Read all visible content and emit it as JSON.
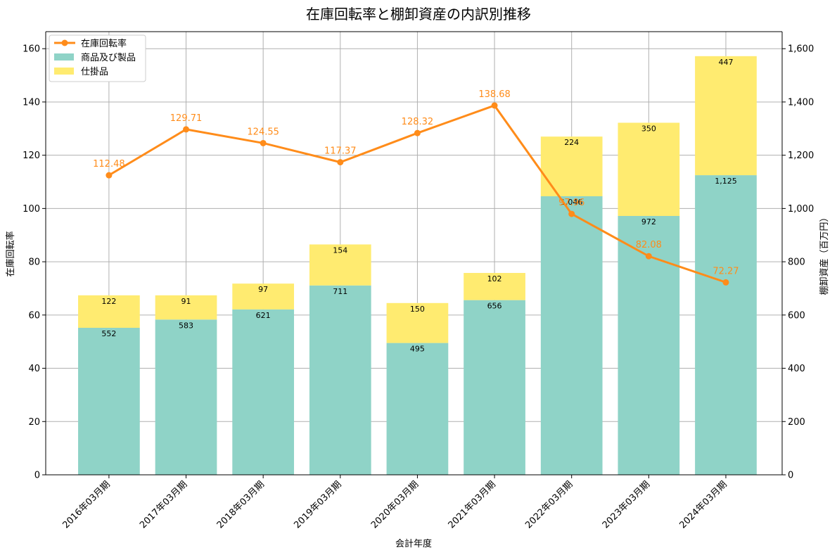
{
  "chart_data": {
    "type": "bar",
    "title": "在庫回転率と棚卸資産の内訳別推移",
    "xlabel": "会計年度",
    "ylabel_left": "在庫回転率",
    "ylabel_right": "棚卸資産（百万円）",
    "categories": [
      "2016年03月期",
      "2017年03月期",
      "2018年03月期",
      "2019年03月期",
      "2020年03月期",
      "2021年03月期",
      "2022年03月期",
      "2023年03月期",
      "2024年03月期"
    ],
    "bar_series": [
      {
        "name": "商品及び製品",
        "values": [
          552,
          583,
          621,
          711,
          495,
          656,
          1046,
          972,
          1125
        ],
        "labels": [
          "552",
          "583",
          "621",
          "711",
          "495",
          "656",
          "1,046",
          "972",
          "1,125"
        ],
        "color": "#8fd3c7"
      },
      {
        "name": "仕掛品",
        "values": [
          122,
          91,
          97,
          154,
          150,
          102,
          224,
          350,
          447
        ],
        "labels": [
          "122",
          "91",
          "97",
          "154",
          "150",
          "102",
          "224",
          "350",
          "447"
        ],
        "color": "#ffeb70"
      }
    ],
    "line_series": {
      "name": "在庫回転率",
      "values": [
        112.48,
        129.71,
        124.55,
        117.37,
        128.32,
        138.68,
        97.96,
        82.08,
        72.27
      ],
      "labels": [
        "112.48",
        "129.71",
        "124.55",
        "117.37",
        "128.32",
        "138.68",
        "97.96",
        "82.08",
        "72.27"
      ],
      "color": "#ff8c1a"
    },
    "ylim_left": [
      0,
      166.4
    ],
    "ylim_right": [
      0,
      1664
    ],
    "yticks_left": [
      0,
      20,
      40,
      60,
      80,
      100,
      120,
      140,
      160
    ],
    "yticks_right": [
      0,
      200,
      400,
      600,
      800,
      1000,
      1200,
      1400,
      1600
    ],
    "yticks_right_labels": [
      "0",
      "200",
      "400",
      "600",
      "800",
      "1,000",
      "1,200",
      "1,400",
      "1,600"
    ],
    "grid": true,
    "legend_position": "top-left"
  }
}
